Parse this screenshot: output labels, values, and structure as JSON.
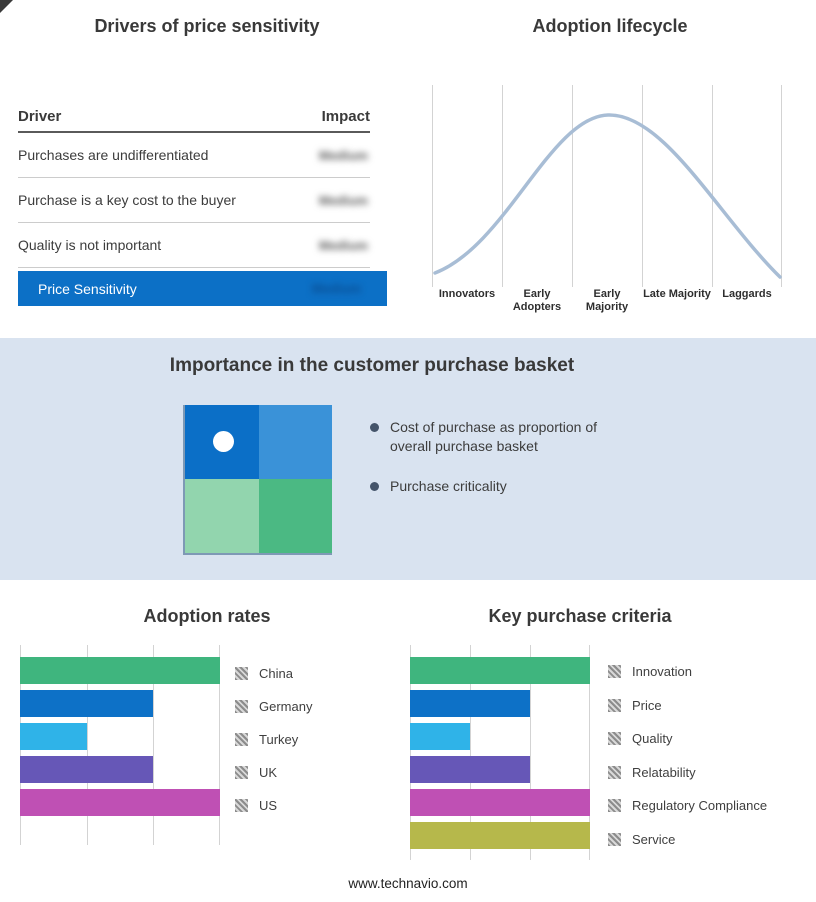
{
  "page": {
    "footer": "www.technavio.com"
  },
  "drivers": {
    "title": "Drivers of price sensitivity",
    "columns": {
      "driver": "Driver",
      "impact": "Impact"
    },
    "rows": [
      {
        "driver": "Purchases are undifferentiated",
        "impact": "Medium"
      },
      {
        "driver": "Purchase is a key cost to the buyer",
        "impact": "Medium"
      },
      {
        "driver": "Quality is not important",
        "impact": "Medium"
      }
    ],
    "highlight": {
      "label": "Price Sensitivity",
      "impact": "Medium",
      "bg": "#0c70c6"
    }
  },
  "basket": {
    "title": "Importance in the customer purchase basket",
    "background": "#d9e3f0",
    "bullets": [
      "Cost of purchase as proportion of overall purchase basket",
      "Purchase criticality"
    ],
    "quadrant": {
      "top_left": "#0b6fc7",
      "top_right": "#3a92d8",
      "bottom_left": "#92d5ae",
      "bottom_right": "#4bb983"
    }
  },
  "chart_data": [
    {
      "id": "adoption-lifecycle",
      "type": "line",
      "title": "Adoption lifecycle",
      "x": [
        "Innovators",
        "Early Adopters",
        "Early Majority",
        "Late Majority",
        "Laggards"
      ],
      "y_relative": [
        0.08,
        0.55,
        1.0,
        0.6,
        0.05
      ],
      "xlabel": "",
      "ylabel": "",
      "style": {
        "curve_color": "#a8bdd5",
        "grid": "vertical-only"
      }
    },
    {
      "id": "adoption-rates",
      "type": "bar",
      "title": "Adoption rates",
      "categories": [
        "China",
        "Germany",
        "Turkey",
        "UK",
        "US"
      ],
      "values": [
        3,
        2,
        1,
        2,
        3
      ],
      "xlim": [
        0,
        3
      ],
      "colors": [
        "#3fb57e",
        "#0d71c7",
        "#2fb3e8",
        "#6657b7",
        "#bf50b4"
      ],
      "orientation": "horizontal",
      "note": "axis unlabeled; bar lengths read in gridline units"
    },
    {
      "id": "key-purchase-criteria",
      "type": "bar",
      "title": "Key purchase criteria",
      "categories": [
        "Innovation",
        "Price",
        "Quality",
        "Relatability",
        "Regulatory Compliance",
        "Service"
      ],
      "values": [
        3,
        2,
        1,
        2,
        3,
        3
      ],
      "xlim": [
        0,
        3
      ],
      "colors": [
        "#3fb57e",
        "#0d71c7",
        "#2fb3e8",
        "#6657b7",
        "#bf50b4",
        "#b6b84b"
      ],
      "orientation": "horizontal",
      "note": "axis unlabeled; bar lengths read in gridline units"
    }
  ]
}
